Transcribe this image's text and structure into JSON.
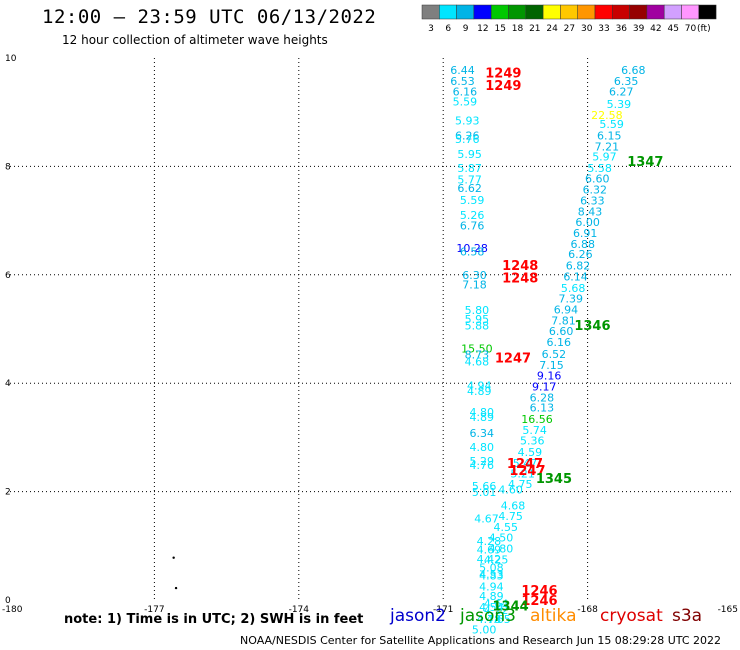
{
  "title": "12:00 – 23:59 UTC 06/13/2022",
  "subtitle": "12 hour collection of altimeter wave heights",
  "note": "note:  1) Time is in UTC; 2) SWH is in feet",
  "footer": "NOAA/NESDIS Center for Satellite Applications and Research    Jun 15 08:29:28 UTC 2022",
  "legend": {
    "ticks": [
      "3",
      "6",
      "9",
      "12",
      "15",
      "18",
      "21",
      "24",
      "27",
      "30",
      "33",
      "36",
      "39",
      "42",
      "45",
      "70",
      "(ft)"
    ],
    "colors": [
      "#7f7f7f",
      "#00e5ff",
      "#00b4e6",
      "#0000ff",
      "#00c800",
      "#009600",
      "#006400",
      "#ffff00",
      "#ffc800",
      "#ff9600",
      "#ff0000",
      "#c80000",
      "#960000",
      "#a000a0",
      "#d2a0ff",
      "#ff96ff",
      "#000000"
    ]
  },
  "satellites": [
    {
      "name": "jason2",
      "color": "#0000cc"
    },
    {
      "name": "jason3",
      "color": "#009600"
    },
    {
      "name": "altika",
      "color": "#ff8c00"
    },
    {
      "name": "cryosat",
      "color": "#dd0000"
    },
    {
      "name": "s3a",
      "color": "#800000"
    }
  ],
  "chart_data": {
    "type": "scatter",
    "x_ticks": [
      "-180",
      "-177",
      "-174",
      "-171",
      "-168",
      "-165"
    ],
    "y_ticks": [
      "0",
      "2",
      "4",
      "6",
      "8",
      "10"
    ],
    "xlim": [
      -180,
      -165
    ],
    "ylim": [
      0,
      10
    ],
    "grid": true,
    "points": [
      {
        "x": -170.6,
        "y": 9.78,
        "label": "6.44",
        "color": "#00b4e6"
      },
      {
        "x": -170.6,
        "y": 9.58,
        "label": "6.53",
        "color": "#00b4e6"
      },
      {
        "x": -170.55,
        "y": 9.38,
        "label": "6.16",
        "color": "#00b4e6"
      },
      {
        "x": -170.55,
        "y": 9.2,
        "label": "5.59",
        "color": "#00e5ff"
      },
      {
        "x": -170.5,
        "y": 8.85,
        "label": "5.93",
        "color": "#00e5ff"
      },
      {
        "x": -170.5,
        "y": 8.57,
        "label": "6.26",
        "color": "#00b4e6"
      },
      {
        "x": -170.5,
        "y": 8.51,
        "label": "5.76",
        "color": "#00e5ff"
      },
      {
        "x": -170.45,
        "y": 8.23,
        "label": "5.95",
        "color": "#00e5ff"
      },
      {
        "x": -170.45,
        "y": 7.97,
        "label": "5.87",
        "color": "#00e5ff"
      },
      {
        "x": -170.45,
        "y": 7.76,
        "label": "5.77",
        "color": "#00e5ff"
      },
      {
        "x": -170.45,
        "y": 7.6,
        "label": "6.62",
        "color": "#00b4e6"
      },
      {
        "x": -170.4,
        "y": 7.38,
        "label": "5.59",
        "color": "#00e5ff"
      },
      {
        "x": -170.4,
        "y": 7.1,
        "label": "5.26",
        "color": "#00e5ff"
      },
      {
        "x": -170.4,
        "y": 6.91,
        "label": "6.76",
        "color": "#00b4e6"
      },
      {
        "x": -170.4,
        "y": 6.49,
        "label": "10.28",
        "color": "#0000ff"
      },
      {
        "x": -170.4,
        "y": 6.43,
        "label": "6.58",
        "color": "#00b4e6"
      },
      {
        "x": -170.35,
        "y": 6.0,
        "label": "6.30",
        "color": "#00b4e6"
      },
      {
        "x": -170.35,
        "y": 5.82,
        "label": "7.18",
        "color": "#00b4e6"
      },
      {
        "x": -170.3,
        "y": 5.35,
        "label": "5.80",
        "color": "#00e5ff"
      },
      {
        "x": -170.3,
        "y": 5.18,
        "label": "5.95",
        "color": "#00e5ff"
      },
      {
        "x": -170.3,
        "y": 5.06,
        "label": "5.88",
        "color": "#00e5ff"
      },
      {
        "x": -170.3,
        "y": 4.64,
        "label": "15.50",
        "color": "#00c800"
      },
      {
        "x": -170.3,
        "y": 4.53,
        "label": "8.73",
        "color": "#00b4e6"
      },
      {
        "x": -170.3,
        "y": 4.4,
        "label": "4.68",
        "color": "#00e5ff"
      },
      {
        "x": -170.25,
        "y": 3.96,
        "label": "4.94",
        "color": "#00e5ff"
      },
      {
        "x": -170.25,
        "y": 3.86,
        "label": "4.89",
        "color": "#00e5ff"
      },
      {
        "x": -170.2,
        "y": 3.47,
        "label": "4.80",
        "color": "#00e5ff"
      },
      {
        "x": -170.2,
        "y": 3.38,
        "label": "4.89",
        "color": "#00e5ff"
      },
      {
        "x": -170.2,
        "y": 3.08,
        "label": "6.34",
        "color": "#00b4e6"
      },
      {
        "x": -170.2,
        "y": 2.82,
        "label": "4.80",
        "color": "#00e5ff"
      },
      {
        "x": -170.2,
        "y": 2.56,
        "label": "5.29",
        "color": "#00e5ff"
      },
      {
        "x": -170.2,
        "y": 2.49,
        "label": "4.76",
        "color": "#00e5ff"
      },
      {
        "x": -170.15,
        "y": 2.1,
        "label": "5.66",
        "color": "#00e5ff"
      },
      {
        "x": -170.15,
        "y": 1.99,
        "label": "5.01",
        "color": "#00e5ff"
      },
      {
        "x": -170.1,
        "y": 1.5,
        "label": "4.67",
        "color": "#00e5ff"
      },
      {
        "x": -170.05,
        "y": 1.09,
        "label": "4.28",
        "color": "#00e5ff"
      },
      {
        "x": -170.05,
        "y": 0.93,
        "label": "4.69",
        "color": "#00e5ff"
      },
      {
        "x": -170.05,
        "y": 0.76,
        "label": "4.42",
        "color": "#00e5ff"
      },
      {
        "x": -170.0,
        "y": 0.6,
        "label": "5.08",
        "color": "#00e5ff"
      },
      {
        "x": -170.0,
        "y": 0.48,
        "label": "4.53",
        "color": "#00e5ff"
      },
      {
        "x": -170.0,
        "y": 0.45,
        "label": "4.83",
        "color": "#00e5ff"
      },
      {
        "x": -170.0,
        "y": 0.25,
        "label": "4.94",
        "color": "#00e5ff"
      },
      {
        "x": -170.0,
        "y": 0.07,
        "label": "4.89",
        "color": "#00e5ff"
      },
      {
        "x": -169.9,
        "y": -0.06,
        "label": "4.64",
        "color": "#00e5ff"
      },
      {
        "x": -170.0,
        "y": -0.13,
        "label": "4.54",
        "color": "#00e5ff"
      },
      {
        "x": -169.9,
        "y": -0.18,
        "label": "4.12",
        "color": "#00e5ff"
      },
      {
        "x": -170.05,
        "y": -0.35,
        "label": "4.78",
        "color": "#00e5ff"
      },
      {
        "x": -169.85,
        "y": -0.35,
        "label": "4.65",
        "color": "#00e5ff"
      },
      {
        "x": -170.15,
        "y": -0.54,
        "label": "5.00",
        "color": "#00e5ff"
      },
      {
        "x": -167.05,
        "y": 9.78,
        "label": "6.68",
        "color": "#00b4e6"
      },
      {
        "x": -167.2,
        "y": 9.58,
        "label": "6.35",
        "color": "#00b4e6"
      },
      {
        "x": -167.3,
        "y": 9.38,
        "label": "6.27",
        "color": "#00b4e6"
      },
      {
        "x": -167.35,
        "y": 9.15,
        "label": "5.39",
        "color": "#00e5ff"
      },
      {
        "x": -167.6,
        "y": 8.95,
        "label": "22.58",
        "color": "#ffff00"
      },
      {
        "x": -167.5,
        "y": 8.78,
        "label": "5.59",
        "color": "#00e5ff"
      },
      {
        "x": -167.55,
        "y": 8.57,
        "label": "6.15",
        "color": "#00b4e6"
      },
      {
        "x": -167.6,
        "y": 8.37,
        "label": "7.21",
        "color": "#00b4e6"
      },
      {
        "x": -167.65,
        "y": 8.18,
        "label": "5.97",
        "color": "#00e5ff"
      },
      {
        "x": -167.75,
        "y": 7.97,
        "label": "5.58",
        "color": "#00e5ff"
      },
      {
        "x": -167.8,
        "y": 7.78,
        "label": "6.60",
        "color": "#00b4e6"
      },
      {
        "x": -167.85,
        "y": 7.57,
        "label": "6.32",
        "color": "#00b4e6"
      },
      {
        "x": -167.9,
        "y": 7.37,
        "label": "6.33",
        "color": "#00b4e6"
      },
      {
        "x": -167.95,
        "y": 7.17,
        "label": "8.43",
        "color": "#00b4e6"
      },
      {
        "x": -168.0,
        "y": 6.97,
        "label": "6.00",
        "color": "#00b4e6"
      },
      {
        "x": -168.05,
        "y": 6.77,
        "label": "6.91",
        "color": "#00b4e6"
      },
      {
        "x": -168.1,
        "y": 6.57,
        "label": "6.88",
        "color": "#00b4e6"
      },
      {
        "x": -168.15,
        "y": 6.38,
        "label": "6.26",
        "color": "#00b4e6"
      },
      {
        "x": -168.2,
        "y": 6.17,
        "label": "6.82",
        "color": "#00b4e6"
      },
      {
        "x": -168.25,
        "y": 5.97,
        "label": "6.14",
        "color": "#00b4e6"
      },
      {
        "x": -168.3,
        "y": 5.76,
        "label": "5.68",
        "color": "#00e5ff"
      },
      {
        "x": -168.35,
        "y": 5.56,
        "label": "7.39",
        "color": "#00b4e6"
      },
      {
        "x": -168.45,
        "y": 5.36,
        "label": "6.94",
        "color": "#00b4e6"
      },
      {
        "x": -168.5,
        "y": 5.16,
        "label": "7.81",
        "color": "#00b4e6"
      },
      {
        "x": -168.55,
        "y": 4.96,
        "label": "6.60",
        "color": "#00b4e6"
      },
      {
        "x": -168.6,
        "y": 4.76,
        "label": "6.16",
        "color": "#00b4e6"
      },
      {
        "x": -168.7,
        "y": 4.54,
        "label": "6.52",
        "color": "#00b4e6"
      },
      {
        "x": -168.75,
        "y": 4.34,
        "label": "7.15",
        "color": "#00b4e6"
      },
      {
        "x": -168.8,
        "y": 4.14,
        "label": "9.16",
        "color": "#0000ff"
      },
      {
        "x": -168.9,
        "y": 3.94,
        "label": "9.17",
        "color": "#0000ff"
      },
      {
        "x": -168.95,
        "y": 3.74,
        "label": "6.28",
        "color": "#00b4e6"
      },
      {
        "x": -168.95,
        "y": 3.55,
        "label": "6.13",
        "color": "#00b4e6"
      },
      {
        "x": -169.05,
        "y": 3.34,
        "label": "16.56",
        "color": "#00c800"
      },
      {
        "x": -169.1,
        "y": 3.14,
        "label": "5.74",
        "color": "#00e5ff"
      },
      {
        "x": -169.15,
        "y": 2.94,
        "label": "5.36",
        "color": "#00e5ff"
      },
      {
        "x": -169.2,
        "y": 2.73,
        "label": "4.59",
        "color": "#00e5ff"
      },
      {
        "x": -169.3,
        "y": 2.53,
        "label": "5.47",
        "color": "#00e5ff"
      },
      {
        "x": -169.35,
        "y": 2.33,
        "label": "5.21",
        "color": "#00e5ff"
      },
      {
        "x": -169.4,
        "y": 2.14,
        "label": "4.75",
        "color": "#00e5ff"
      },
      {
        "x": -169.6,
        "y": 2.04,
        "label": "4.60",
        "color": "#00e5ff"
      },
      {
        "x": -169.55,
        "y": 1.74,
        "label": "4.68",
        "color": "#00e5ff"
      },
      {
        "x": -169.6,
        "y": 1.55,
        "label": "4.75",
        "color": "#00e5ff"
      },
      {
        "x": -169.7,
        "y": 1.35,
        "label": "4.55",
        "color": "#00e5ff"
      },
      {
        "x": -169.8,
        "y": 1.15,
        "label": "4.50",
        "color": "#00e5ff"
      },
      {
        "x": -169.8,
        "y": 0.95,
        "label": "4.80",
        "color": "#00e5ff"
      },
      {
        "x": -169.9,
        "y": 0.75,
        "label": "4.25",
        "color": "#00e5ff"
      }
    ],
    "track_times": [
      {
        "x": -169.75,
        "y": 9.73,
        "label": "1249",
        "color": "#ff0000"
      },
      {
        "x": -169.75,
        "y": 9.5,
        "label": "1249",
        "color": "#ff0000"
      },
      {
        "x": -166.8,
        "y": 8.1,
        "label": "1347",
        "color": "#009600"
      },
      {
        "x": -169.4,
        "y": 6.18,
        "label": "1248",
        "color": "#ff0000"
      },
      {
        "x": -169.4,
        "y": 5.95,
        "label": "1248",
        "color": "#ff0000"
      },
      {
        "x": -167.9,
        "y": 5.07,
        "label": "1346",
        "color": "#009600"
      },
      {
        "x": -169.55,
        "y": 4.47,
        "label": "1247",
        "color": "#ff0000"
      },
      {
        "x": -169.3,
        "y": 2.53,
        "label": "1247",
        "color": "#ff0000"
      },
      {
        "x": -169.25,
        "y": 2.4,
        "label": "1247",
        "color": "#ff0000"
      },
      {
        "x": -168.7,
        "y": 2.25,
        "label": "1345",
        "color": "#009600"
      },
      {
        "x": -169.0,
        "y": 0.18,
        "label": "1246",
        "color": "#ff0000"
      },
      {
        "x": -169.0,
        "y": 0.0,
        "label": "1246",
        "color": "#ff0000"
      },
      {
        "x": -169.6,
        "y": -0.1,
        "label": "1344",
        "color": "#009600"
      }
    ],
    "dots": [
      {
        "x": -176.6,
        "y": 0.78
      },
      {
        "x": -176.55,
        "y": 0.22
      }
    ]
  }
}
